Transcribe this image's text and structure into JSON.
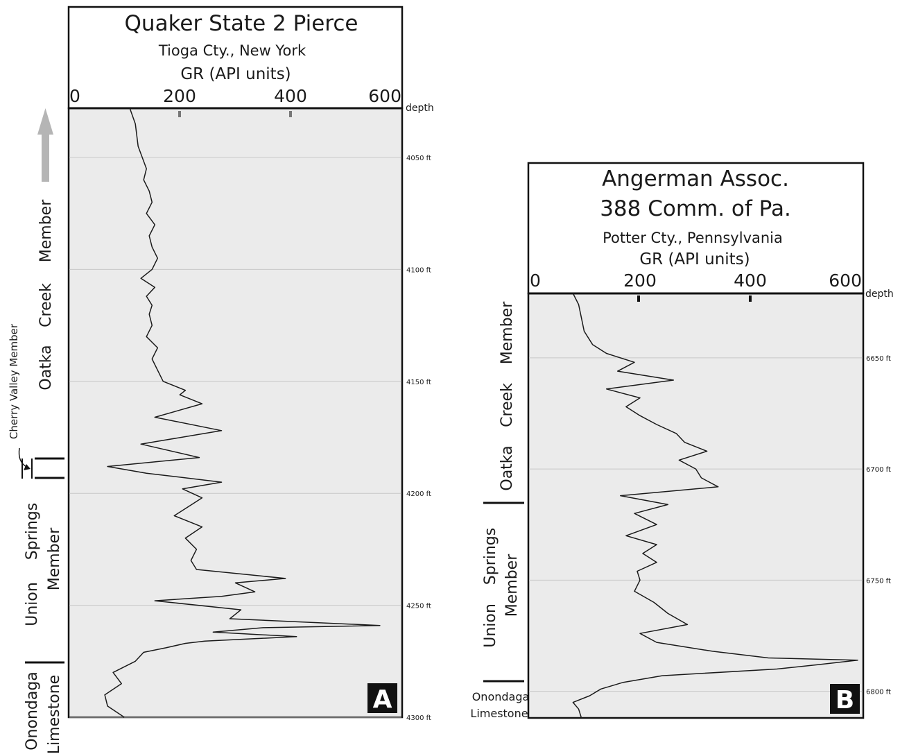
{
  "chart_data": [
    {
      "type": "line",
      "panel_label": "A",
      "title": "Quaker State  2 Pierce",
      "location": "Tioga Cty., New York",
      "xlabel": "GR  (API units)",
      "x_ticks": [
        "0",
        "200",
        "400",
        "600"
      ],
      "xlim": [
        0,
        600
      ],
      "ylabel": "depth",
      "y_ticks": [
        {
          "value": 4050,
          "label": "4050 ft"
        },
        {
          "value": 4100,
          "label": "4100 ft"
        },
        {
          "value": 4150,
          "label": "4150 ft"
        },
        {
          "value": 4200,
          "label": "4200 ft"
        },
        {
          "value": 4250,
          "label": "4250 ft"
        },
        {
          "value": 4300,
          "label": "4300 ft"
        }
      ],
      "ylim": [
        4028,
        4300
      ],
      "grid": "horizontal",
      "formations": {
        "upper": [
          "Oatka",
          "Creek",
          "Member"
        ],
        "cherry_valley": "Cherry Valley Member",
        "union": [
          "Union",
          "Springs",
          "Member"
        ],
        "onondaga": [
          "Onondaga",
          "Limestone"
        ]
      },
      "series": [
        {
          "depth": [
            4028,
            4035,
            4045,
            4055,
            4060,
            4065,
            4070,
            4075,
            4080,
            4085,
            4090,
            4095,
            4100,
            4104,
            4108,
            4112,
            4116,
            4120,
            4125,
            4130,
            4135,
            4140,
            4145,
            4150,
            4154,
            4156,
            4160,
            4166,
            4172,
            4178,
            4184,
            4188,
            4191,
            4195,
            4198,
            4202,
            4206,
            4210,
            4215,
            4220,
            4225,
            4230,
            4234,
            4238,
            4240,
            4244,
            4246,
            4248,
            4252,
            4256,
            4259,
            4260,
            4262,
            4264,
            4266,
            4267,
            4269,
            4271,
            4275,
            4280,
            4285,
            4290,
            4295,
            4300
          ],
          "gr": [
            110,
            120,
            125,
            140,
            135,
            145,
            150,
            140,
            155,
            145,
            150,
            160,
            150,
            130,
            155,
            140,
            150,
            145,
            150,
            140,
            160,
            150,
            160,
            170,
            210,
            200,
            240,
            155,
            275,
            130,
            235,
            70,
            140,
            275,
            205,
            240,
            215,
            190,
            240,
            210,
            230,
            220,
            230,
            390,
            300,
            335,
            275,
            155,
            310,
            290,
            560,
            350,
            260,
            410,
            245,
            210,
            175,
            135,
            120,
            80,
            95,
            65,
            70,
            100
          ]
        }
      ]
    },
    {
      "type": "line",
      "panel_label": "B",
      "title": "Angerman Assoc.",
      "title2": "388 Comm. of Pa.",
      "location": "Potter Cty., Pennsylvania",
      "xlabel": "GR  (API units)",
      "x_ticks": [
        "0",
        "200",
        "400",
        "600"
      ],
      "xlim": [
        0,
        600
      ],
      "ylabel": "depth",
      "y_ticks": [
        {
          "value": 6650,
          "label": "6650 ft"
        },
        {
          "value": 6700,
          "label": "6700 ft"
        },
        {
          "value": 6750,
          "label": "6750 ft"
        },
        {
          "value": 6800,
          "label": "6800 ft"
        }
      ],
      "ylim": [
        6621,
        6812
      ],
      "grid": "horizontal",
      "formations": {
        "upper": [
          "Oatka",
          "Creek",
          "Member"
        ],
        "union": [
          "Union",
          "Springs",
          "Member"
        ],
        "onondaga": [
          "Onondaga",
          "Limestone"
        ]
      },
      "series": [
        {
          "depth": [
            6621,
            6626,
            6632,
            6638,
            6644,
            6648,
            6652,
            6656,
            6660,
            6664,
            6668,
            6672,
            6676,
            6680,
            6684,
            6688,
            6692,
            6696,
            6700,
            6704,
            6708,
            6712,
            6716,
            6720,
            6725,
            6730,
            6734,
            6738,
            6742,
            6746,
            6750,
            6755,
            6760,
            6765,
            6770,
            6774,
            6778,
            6782,
            6785,
            6786,
            6788,
            6790,
            6793,
            6796,
            6799,
            6802,
            6805,
            6808,
            6812
          ],
          "gr": [
            80,
            90,
            95,
            100,
            115,
            140,
            190,
            160,
            260,
            140,
            200,
            175,
            200,
            230,
            265,
            280,
            320,
            270,
            300,
            310,
            340,
            165,
            250,
            190,
            230,
            175,
            230,
            205,
            230,
            195,
            200,
            190,
            225,
            250,
            285,
            200,
            230,
            330,
            430,
            590,
            520,
            445,
            240,
            170,
            130,
            110,
            80,
            90,
            95
          ]
        }
      ]
    }
  ]
}
